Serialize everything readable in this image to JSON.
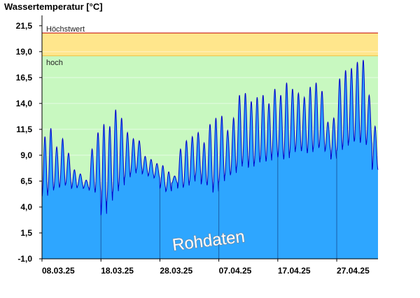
{
  "chart_data": {
    "type": "area",
    "title": "Wassertemperatur [°C]",
    "watermark": "Rohdaten",
    "ylim": [
      -1.0,
      22.5
    ],
    "y_ticks": [
      "-1,0",
      "1,5",
      "4,0",
      "6,5",
      "9,0",
      "11,5",
      "14,0",
      "16,5",
      "19,0",
      "21,5"
    ],
    "x_ticks": [
      "08.03.25",
      "18.03.25",
      "28.03.25",
      "07.04.25",
      "17.04.25",
      "27.04.25"
    ],
    "x_start": "2025-03-08",
    "x_end": "2025-05-04",
    "thresholds": [
      {
        "label": "Höchstwert",
        "value": 20.8,
        "color": "#c00000"
      },
      {
        "label": "hoch",
        "value": 18.6,
        "color": "#f0c040"
      }
    ],
    "bands": [
      {
        "from": -1.0,
        "to": 18.6,
        "color": "#c8f8c0"
      },
      {
        "from": 18.6,
        "to": 20.8,
        "color": "#ffe68c"
      }
    ],
    "grid": true,
    "series": [
      {
        "color": "#2ea6ff",
        "daily_min": [
          5.0,
          5.5,
          5.8,
          6.0,
          6.2,
          5.8,
          6.0,
          5.8,
          5.6,
          5.4,
          3.2,
          4.5,
          5.4,
          6.0,
          6.8,
          7.2,
          7.6,
          7.2,
          7.0,
          6.8,
          5.8,
          5.5,
          6.3,
          5.8,
          6.0,
          6.4,
          7.0,
          6.2,
          6.1,
          5.4,
          6.4,
          7.0,
          7.2,
          7.8,
          8.2,
          7.8,
          8.2,
          8.6,
          8.4,
          9.0,
          8.8,
          8.6,
          9.2,
          9.6,
          9.4,
          9.2,
          9.6,
          9.8,
          9.4,
          8.6,
          9.4,
          9.8,
          10.2,
          10.4,
          10.2,
          10.0,
          7.6
        ],
        "daily_max": [
          10.8,
          11.6,
          9.8,
          10.6,
          9.2,
          7.6,
          7.2,
          6.6,
          9.6,
          11.2,
          12.0,
          11.8,
          13.4,
          12.6,
          11.2,
          10.6,
          10.4,
          8.9,
          8.6,
          8.2,
          8.0,
          7.4,
          7.0,
          9.6,
          10.4,
          10.8,
          11.2,
          10.2,
          12.0,
          12.6,
          12.8,
          11.4,
          12.6,
          14.8,
          15.0,
          14.2,
          14.6,
          14.8,
          14.0,
          15.4,
          14.8,
          16.0,
          15.4,
          15.0,
          14.6,
          15.6,
          16.0,
          15.2,
          12.2,
          12.6,
          16.4,
          17.2,
          17.4,
          18.0,
          18.2,
          14.8,
          11.8
        ]
      }
    ]
  }
}
